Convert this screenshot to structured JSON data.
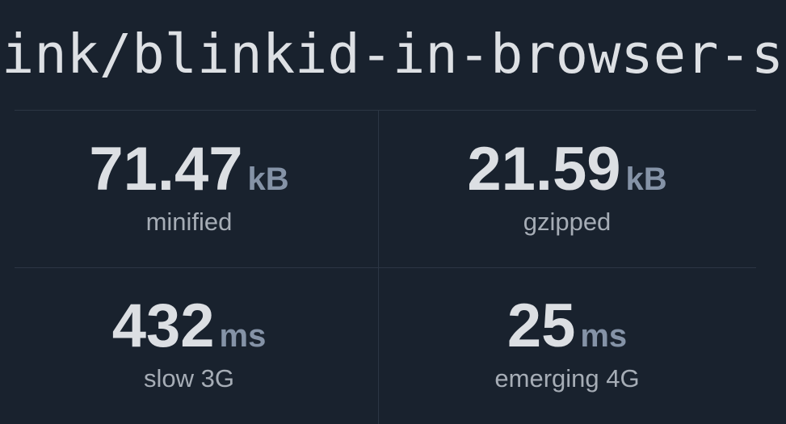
{
  "package_title": "ink/blinkid-in-browser-s",
  "stats": [
    {
      "value": "71.47",
      "unit": "kB",
      "label": "minified"
    },
    {
      "value": "21.59",
      "unit": "kB",
      "label": "gzipped"
    },
    {
      "value": "432",
      "unit": "ms",
      "label": "slow 3G"
    },
    {
      "value": "25",
      "unit": "ms",
      "label": "emerging 4G"
    }
  ],
  "colors": {
    "background": "#19222e",
    "value": "#dcdfe3",
    "unit": "#8593a7",
    "label": "#a6adb6"
  }
}
